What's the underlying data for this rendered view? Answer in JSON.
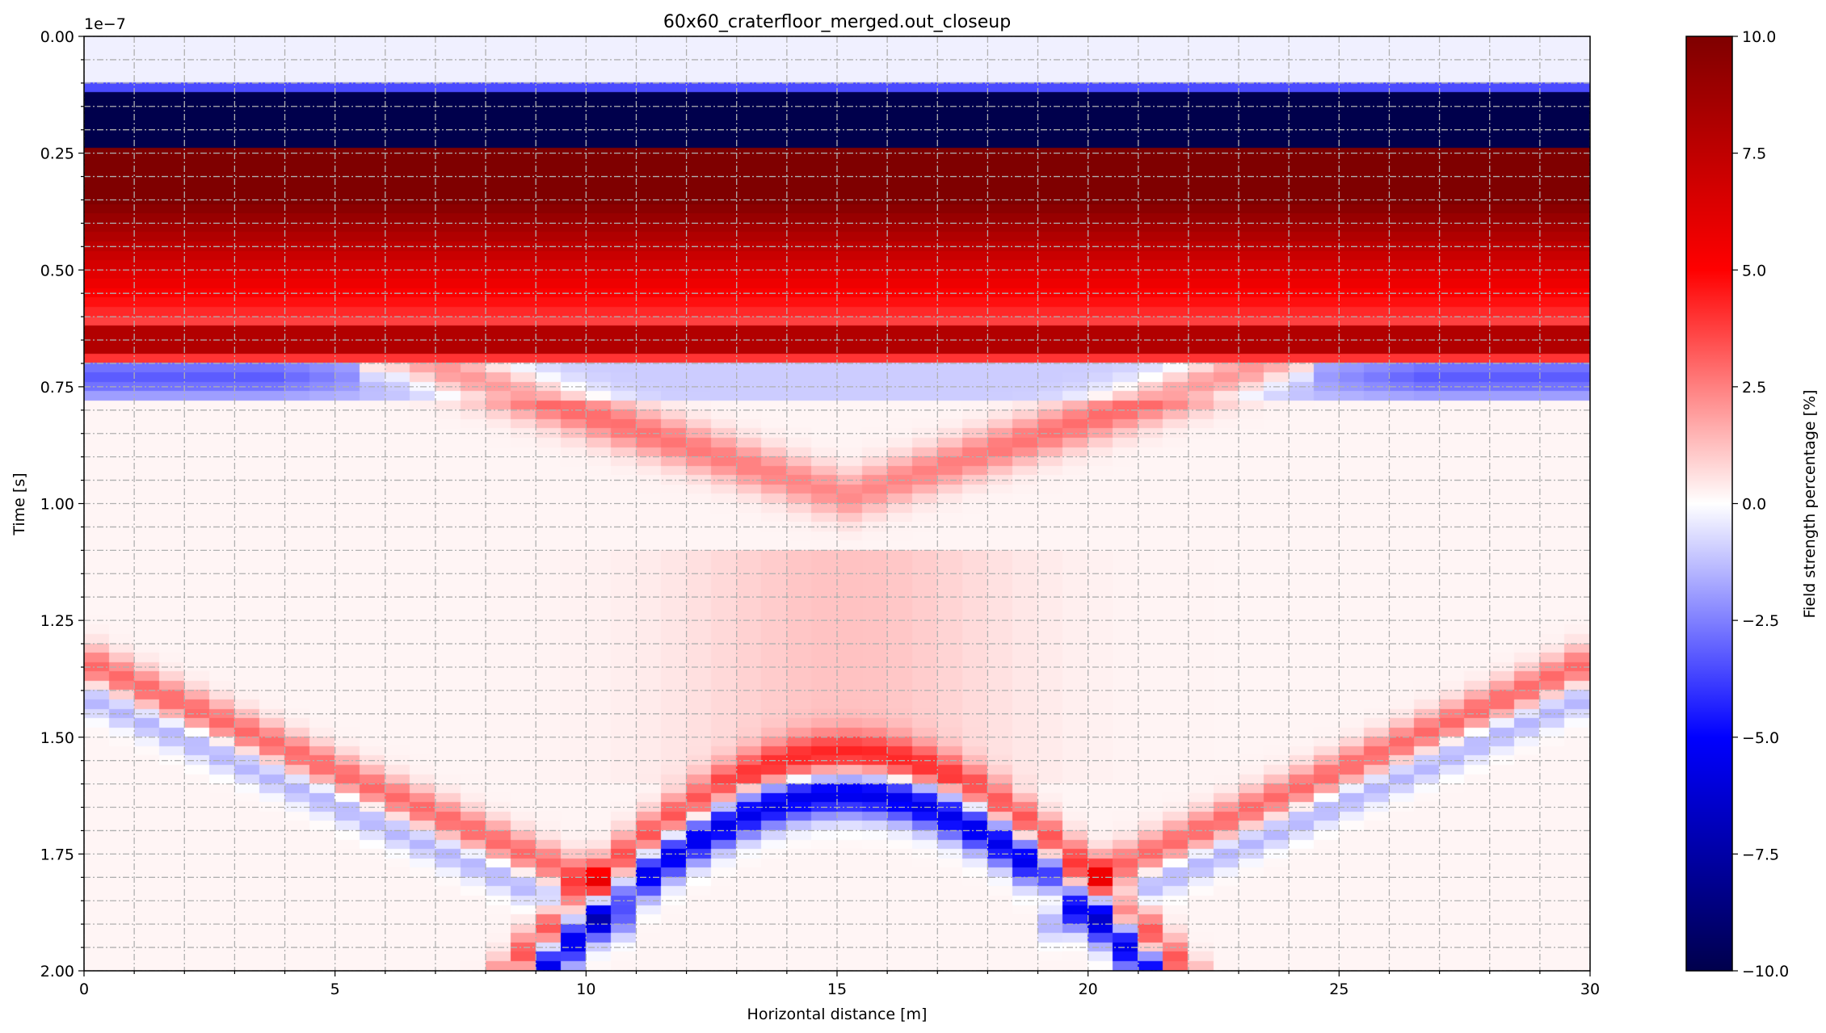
{
  "chart_data": {
    "type": "heatmap",
    "title": "60x60_craterfloor_merged.out_closeup",
    "xlabel": "Horizontal distance [m]",
    "ylabel": "Time [s]",
    "y_offset_text": "1e−7",
    "xlim": [
      0,
      30
    ],
    "ylim": [
      2e-07,
      0
    ],
    "x_tick_values": [
      0,
      5,
      10,
      15,
      20,
      25,
      30
    ],
    "x_tick_labels": [
      "0",
      "5",
      "10",
      "15",
      "20",
      "25",
      "30"
    ],
    "y_tick_values": [
      0,
      2.5e-08,
      5e-08,
      7.5e-08,
      1e-07,
      1.25e-07,
      1.5e-07,
      1.75e-07,
      2e-07
    ],
    "y_tick_labels": [
      "0.00",
      "0.25",
      "0.50",
      "0.75",
      "1.00",
      "1.25",
      "1.50",
      "1.75",
      "2.00"
    ],
    "grid": true,
    "grid_style": "dash-dot, gray",
    "colormap": "seismic",
    "colormap_stops": [
      "#00004c",
      "#0000ff",
      "#ffffff",
      "#ff0000",
      "#7f0000"
    ],
    "colorbar": {
      "label": "Field strength percentage [%]",
      "range": [
        -10.0,
        10.0
      ],
      "tick_values": [
        10.0,
        7.5,
        5.0,
        2.5,
        0.0,
        -2.5,
        -5.0,
        -7.5,
        -10.0
      ],
      "tick_labels": [
        "10.0",
        "7.5",
        "5.0",
        "2.5",
        "0.0",
        "−2.5",
        "−5.0",
        "−7.5",
        "−10.0"
      ]
    },
    "features": [
      {
        "description": "direct wave",
        "time_range_s": [
          1.3e-08,
          2.5e-08
        ],
        "value_pct": -10
      },
      {
        "description": "direct wave",
        "time_range_s": [
          2.5e-08,
          6.8e-08
        ],
        "value_pct_range": [
          3,
          10
        ]
      },
      {
        "description": "negative band",
        "time_range_s": [
          7e-08,
          7.5e-08
        ],
        "value_pct": -3
      },
      {
        "description": "apex hyperbola",
        "apex_x_m": 15.2,
        "apex_time_s": 1.62e-07,
        "value_pct": -6
      }
    ]
  }
}
